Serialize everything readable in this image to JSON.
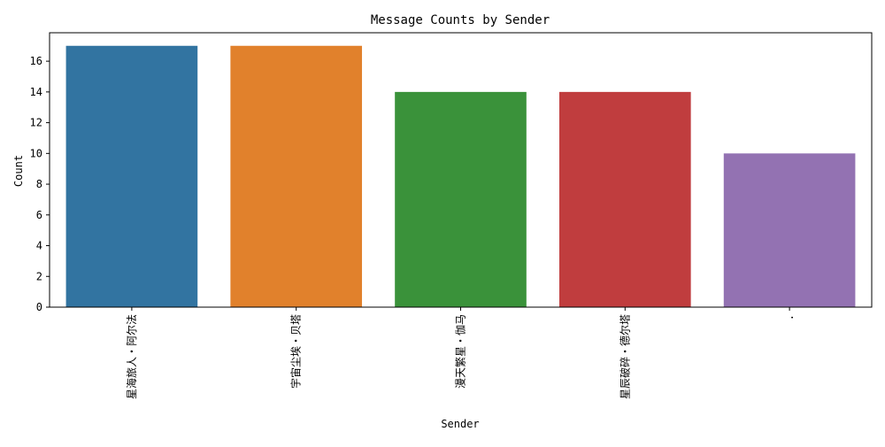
{
  "chart_data": {
    "type": "bar",
    "title": "Message Counts by Sender",
    "xlabel": "Sender",
    "ylabel": "Count",
    "categories": [
      "星海旅人・阿尔法",
      "宇宙尘埃・贝塔",
      "漫天繁星・伽马",
      "星辰破碎・德尔塔",
      "."
    ],
    "values": [
      17,
      17,
      14,
      14,
      10
    ],
    "ylim": [
      0,
      17.85
    ],
    "yticks": [
      0,
      2,
      4,
      6,
      8,
      10,
      12,
      14,
      16
    ],
    "colors": [
      "#3274a1",
      "#e1812c",
      "#3a923a",
      "#c03d3e",
      "#9372b2"
    ],
    "grid": false,
    "legend": "none"
  }
}
